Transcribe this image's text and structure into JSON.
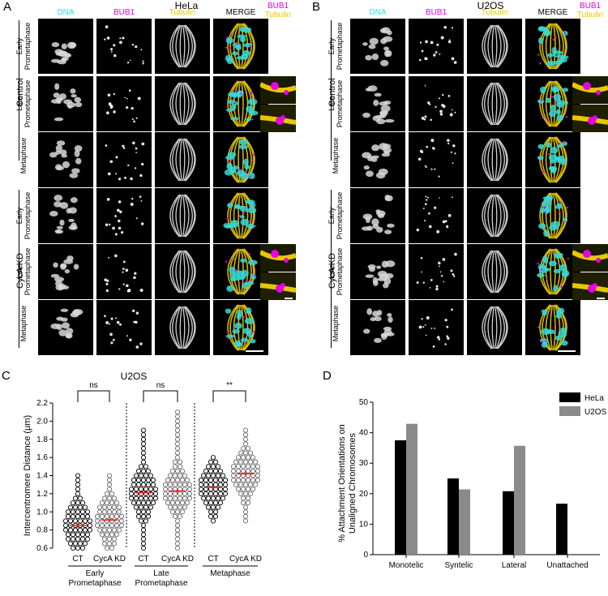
{
  "panels": {
    "A": {
      "letter": "A",
      "title": "HeLa",
      "channels": [
        {
          "label": "DNA",
          "color": "#2ee6e6"
        },
        {
          "label": "BUB1",
          "color": "#e600e6"
        },
        {
          "label": "Tubulin",
          "color": "#e6c800"
        },
        {
          "label": "MERGE",
          "color": "#000000"
        }
      ],
      "inset_labels": [
        {
          "label": "BUB1",
          "color": "#e600e6"
        },
        {
          "label": "Tubulin",
          "color": "#e6c800"
        }
      ],
      "groups": [
        "Control",
        "CycA KD"
      ],
      "rows": [
        {
          "l1": "Early",
          "l2": "Prometaphase"
        },
        {
          "l1": "Late",
          "l2": "Prometaphase"
        },
        {
          "l1": "",
          "l2": "Metaphase"
        },
        {
          "l1": "Early",
          "l2": "Prometaphase"
        },
        {
          "l1": "Late",
          "l2": "Prometaphase"
        },
        {
          "l1": "",
          "l2": "Metaphase"
        }
      ]
    },
    "B": {
      "letter": "B",
      "title": "U2OS",
      "channels": [
        {
          "label": "DNA",
          "color": "#2ee6e6"
        },
        {
          "label": "BUB1",
          "color": "#e600e6"
        },
        {
          "label": "Tubulin",
          "color": "#e6c800"
        },
        {
          "label": "MERGE",
          "color": "#000000"
        }
      ],
      "inset_labels": [
        {
          "label": "BUB1",
          "color": "#e600e6"
        },
        {
          "label": "Tubulin",
          "color": "#e6c800"
        }
      ],
      "groups": [
        "Control",
        "CycA KD"
      ],
      "rows": [
        {
          "l1": "Early",
          "l2": "Prometaphase"
        },
        {
          "l1": "Late",
          "l2": "Prometaphase"
        },
        {
          "l1": "",
          "l2": "Metaphase"
        },
        {
          "l1": "Early",
          "l2": "Prometaphase"
        },
        {
          "l1": "Late",
          "l2": "Prometaphase"
        },
        {
          "l1": "",
          "l2": "Metaphase"
        }
      ]
    },
    "C": {
      "letter": "C"
    },
    "D": {
      "letter": "D"
    }
  },
  "chart_data": [
    {
      "type": "scatter",
      "title": "U2OS",
      "ylabel": "Intercentromere Distance (μm)",
      "ylim": [
        0.6,
        2.2
      ],
      "yticks": [
        "0.6",
        "0.8",
        "1.0",
        "1.2",
        "1.4",
        "1.6",
        "1.8",
        "2.0",
        "2.2"
      ],
      "categories": [
        "CT",
        "CycA KD",
        "CT",
        "CycA KD",
        "CT",
        "CycA KD"
      ],
      "groups": [
        {
          "l1": "Early",
          "l2": "Prometaphase"
        },
        {
          "l1": "Late",
          "l2": "Prometaphase"
        },
        {
          "l1": "",
          "l2": "Metaphase"
        }
      ],
      "significance": [
        "ns",
        "ns",
        "**"
      ],
      "series": [
        {
          "means": [
            0.85,
            0.91,
            1.21,
            1.23,
            1.27,
            1.42
          ],
          "ranges": [
            [
              0.6,
              1.4
            ],
            [
              0.6,
              1.4
            ],
            [
              0.6,
              1.9
            ],
            [
              0.6,
              2.1
            ],
            [
              0.9,
              1.6
            ],
            [
              0.9,
              1.9
            ]
          ]
        }
      ],
      "colors": {
        "ct": "#000000",
        "kd": "#6b6b6b",
        "mean": "#e02020"
      }
    },
    {
      "type": "bar",
      "ylabel": "% Attachment Orientations on Unaligned Chromosomes",
      "ylim": [
        0,
        50
      ],
      "yticks": [
        "0",
        "10",
        "20",
        "30",
        "40",
        "50"
      ],
      "categories": [
        "Monotelic",
        "Syntelic",
        "Lateral",
        "Unattached"
      ],
      "series": [
        {
          "name": "HeLa",
          "color": "#000000",
          "values": [
            37.5,
            25.0,
            20.8,
            16.7
          ]
        },
        {
          "name": "U2OS",
          "color": "#8a8a8a",
          "values": [
            42.9,
            21.4,
            35.7,
            0
          ]
        }
      ],
      "legend": "top-right"
    }
  ]
}
